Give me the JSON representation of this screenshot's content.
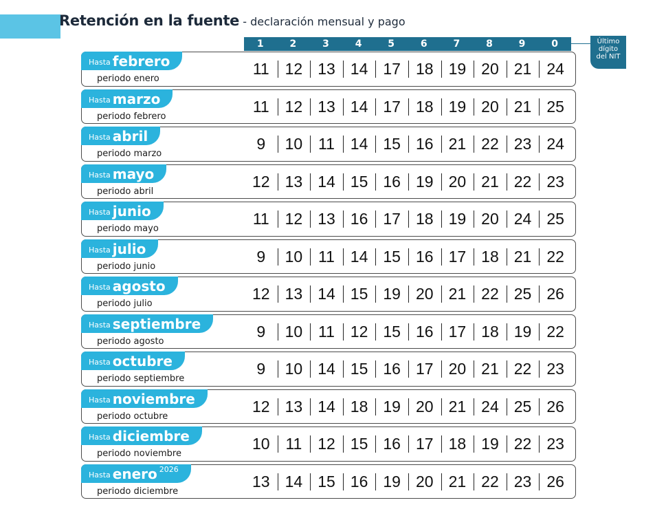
{
  "header": {
    "title": "Retención en la fuente",
    "subtitle": " - declaración mensual y pago"
  },
  "nit_digits": [
    "1",
    "2",
    "3",
    "4",
    "5",
    "6",
    "7",
    "8",
    "9",
    "0"
  ],
  "nit_label": {
    "line1": "Último",
    "line2": "dígito",
    "line3": "del NIT"
  },
  "hasta_label": "Hasta",
  "rows": [
    {
      "month": "febrero",
      "sup": "",
      "periodo": "periodo enero",
      "dates": [
        "11",
        "12",
        "13",
        "14",
        "17",
        "18",
        "19",
        "20",
        "21",
        "24"
      ]
    },
    {
      "month": "marzo",
      "sup": "",
      "periodo": "periodo febrero",
      "dates": [
        "11",
        "12",
        "13",
        "14",
        "17",
        "18",
        "19",
        "20",
        "21",
        "25"
      ]
    },
    {
      "month": "abril",
      "sup": "",
      "periodo": "periodo marzo",
      "dates": [
        "9",
        "10",
        "11",
        "14",
        "15",
        "16",
        "21",
        "22",
        "23",
        "24"
      ]
    },
    {
      "month": "mayo",
      "sup": "",
      "periodo": "periodo abril",
      "dates": [
        "12",
        "13",
        "14",
        "15",
        "16",
        "19",
        "20",
        "21",
        "22",
        "23"
      ]
    },
    {
      "month": "junio",
      "sup": "",
      "periodo": "periodo mayo",
      "dates": [
        "11",
        "12",
        "13",
        "16",
        "17",
        "18",
        "19",
        "20",
        "24",
        "25"
      ]
    },
    {
      "month": "julio",
      "sup": "",
      "periodo": "periodo  junio",
      "dates": [
        "9",
        "10",
        "11",
        "14",
        "15",
        "16",
        "17",
        "18",
        "21",
        "22"
      ]
    },
    {
      "month": "agosto",
      "sup": "",
      "periodo": "periodo julio",
      "dates": [
        "12",
        "13",
        "14",
        "15",
        "19",
        "20",
        "21",
        "22",
        "25",
        "26"
      ]
    },
    {
      "month": "septiembre",
      "sup": "",
      "periodo": "periodo agosto",
      "dates": [
        "9",
        "10",
        "11",
        "12",
        "15",
        "16",
        "17",
        "18",
        "19",
        "22"
      ]
    },
    {
      "month": "octubre",
      "sup": "",
      "periodo": "periodo septiembre",
      "dates": [
        "9",
        "10",
        "14",
        "15",
        "16",
        "17",
        "20",
        "21",
        "22",
        "23"
      ]
    },
    {
      "month": "noviembre",
      "sup": "",
      "periodo": "periodo octubre",
      "dates": [
        "12",
        "13",
        "14",
        "18",
        "19",
        "20",
        "21",
        "24",
        "25",
        "26"
      ]
    },
    {
      "month": "diciembre",
      "sup": "",
      "periodo": "periodo noviembre",
      "dates": [
        "10",
        "11",
        "12",
        "15",
        "16",
        "17",
        "18",
        "19",
        "22",
        "23"
      ]
    },
    {
      "month": "enero",
      "sup": "2026",
      "periodo": "periodo diciembre",
      "dates": [
        "13",
        "14",
        "15",
        "16",
        "19",
        "20",
        "21",
        "22",
        "23",
        "26"
      ]
    }
  ],
  "colors": {
    "accent_light": "#5bc4e5",
    "accent": "#2bb3dd",
    "dark_blue": "#1f6f8f"
  }
}
